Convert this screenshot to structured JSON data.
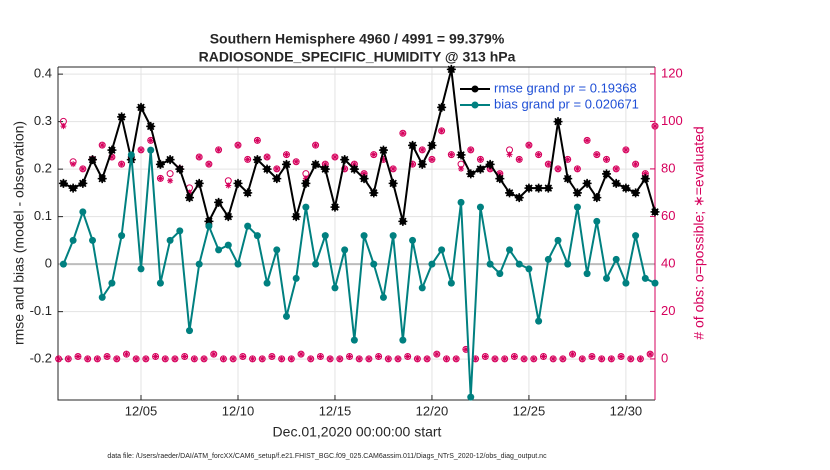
{
  "chart_data": {
    "type": "line",
    "title": "Southern Hemisphere 4960 / 4991 = 99.379%",
    "subtitle": "RADIOSONDE_SPECIFIC_HUMIDITY @ 313 hPa",
    "xlabel": "Dec.01,2020 00:00:00 start",
    "ylabel": "rmse and bias (model - observation)",
    "y2label": "# of obs: o=possible; ∗=evaluated",
    "footnote": "data file: /Users/raeder/DAI/ATM_forcXX/CAM6_setup/f.e21.FHIST_BGC.f09_025.CAM6assim.011/Diags_NTrS_2020-12/obs_diag_output.nc",
    "xlim": [
      0.72,
      31.5
    ],
    "xticks": [
      {
        "value": 5,
        "label": "12/05"
      },
      {
        "value": 10,
        "label": "12/10"
      },
      {
        "value": 15,
        "label": "12/15"
      },
      {
        "value": 20,
        "label": "12/20"
      },
      {
        "value": 25,
        "label": "12/25"
      },
      {
        "value": 30,
        "label": "12/30"
      }
    ],
    "ylim": [
      -0.286,
      0.415
    ],
    "yticks": [
      -0.2,
      -0.1,
      0,
      0.1,
      0.2,
      0.3,
      0.4
    ],
    "y2lim": [
      -17.3,
      122.9
    ],
    "y2ticks": [
      0,
      20,
      40,
      60,
      80,
      100,
      120
    ],
    "grid": true,
    "hline": 0,
    "legend": "northeast",
    "legend_text_color": "#1f4fd6",
    "x": [
      1,
      1.5,
      2,
      2.5,
      3,
      3.5,
      4,
      4.5,
      5,
      5.5,
      6,
      6.5,
      7,
      7.5,
      8,
      8.5,
      9,
      9.5,
      10,
      10.5,
      11,
      11.5,
      12,
      12.5,
      13,
      13.5,
      14,
      14.5,
      15,
      15.5,
      16,
      16.5,
      17,
      17.5,
      18,
      18.5,
      19,
      19.5,
      20,
      20.5,
      21,
      21.5,
      22,
      22.5,
      23,
      23.5,
      24,
      24.5,
      25,
      25.5,
      26,
      26.5,
      27,
      27.5,
      28,
      28.5,
      29,
      29.5,
      30,
      30.5,
      31,
      31.5
    ],
    "series": [
      {
        "name": "rmse grand pr = 0.19368",
        "color": "#000000",
        "values": [
          0.17,
          0.16,
          0.17,
          0.22,
          0.18,
          0.24,
          0.31,
          0.22,
          0.33,
          0.29,
          0.21,
          0.22,
          0.2,
          0.14,
          0.17,
          0.09,
          0.13,
          0.1,
          0.17,
          0.15,
          0.22,
          0.2,
          0.18,
          0.21,
          0.1,
          0.17,
          0.21,
          0.2,
          0.12,
          0.22,
          0.2,
          0.18,
          0.15,
          0.24,
          0.17,
          0.09,
          0.25,
          0.21,
          0.25,
          0.33,
          0.41,
          0.23,
          0.19,
          0.2,
          0.21,
          0.18,
          0.15,
          0.14,
          0.16,
          0.16,
          0.16,
          0.3,
          0.18,
          0.15,
          0.17,
          0.14,
          0.19,
          0.17,
          0.16,
          0.15,
          0.18,
          0.11
        ]
      },
      {
        "name": "bias grand pr = 0.020671",
        "color": "#008080",
        "values": [
          0,
          0.05,
          0.11,
          0.05,
          -0.07,
          -0.04,
          0.06,
          0.23,
          -0.01,
          0.24,
          -0.04,
          0.05,
          0.07,
          -0.14,
          0,
          0.08,
          0.03,
          0.04,
          0,
          0.08,
          0.06,
          -0.04,
          0.03,
          -0.11,
          -0.03,
          0.12,
          0,
          0.06,
          -0.05,
          0.03,
          -0.16,
          0.06,
          0,
          -0.07,
          0.06,
          -0.16,
          0.05,
          -0.05,
          0,
          0.03,
          -0.04,
          0.13,
          -0.28,
          0.12,
          0,
          -0.02,
          0.03,
          0,
          -0.01,
          -0.12,
          0.01,
          0.05,
          0,
          0.12,
          -0.02,
          0.09,
          -0.03,
          0.01,
          -0.04,
          0.06,
          -0.03,
          -0.04
        ]
      }
    ],
    "obs_color": "#d6005c",
    "obs_upper_possible": [
      100,
      83,
      80,
      84,
      90,
      85,
      82,
      85,
      88,
      92,
      76,
      78,
      80,
      72,
      85,
      82,
      88,
      75,
      90,
      84,
      92,
      85,
      80,
      86,
      83,
      78,
      90,
      82,
      85,
      80,
      82,
      78,
      86,
      84,
      80,
      95,
      82,
      88,
      84,
      96,
      86,
      82,
      88,
      84,
      80,
      78,
      88,
      84,
      90,
      86,
      82,
      80,
      84,
      80,
      92,
      86,
      84,
      80,
      88,
      82,
      78,
      98
    ],
    "obs_upper_evaluated": [
      98,
      82,
      80,
      84,
      90,
      85,
      82,
      85,
      88,
      92,
      76,
      75,
      80,
      70,
      85,
      82,
      88,
      73,
      90,
      84,
      92,
      85,
      80,
      86,
      83,
      76,
      90,
      82,
      85,
      80,
      82,
      78,
      86,
      84,
      80,
      95,
      82,
      88,
      84,
      96,
      86,
      80,
      88,
      84,
      80,
      78,
      86,
      84,
      90,
      86,
      82,
      80,
      84,
      80,
      92,
      86,
      84,
      80,
      88,
      82,
      78,
      98
    ],
    "obs_lower_x": [
      0.75,
      1.25,
      1.75,
      2.25,
      2.75,
      3.25,
      3.75,
      4.25,
      4.75,
      5.25,
      5.75,
      6.25,
      6.75,
      7.25,
      7.75,
      8.25,
      8.75,
      9.25,
      9.75,
      10.25,
      10.75,
      11.25,
      11.75,
      12.25,
      12.75,
      13.25,
      13.75,
      14.25,
      14.75,
      15.25,
      15.75,
      16.25,
      16.75,
      17.25,
      17.75,
      18.25,
      18.75,
      19.25,
      19.75,
      20.25,
      20.75,
      21.25,
      21.75,
      22.25,
      22.75,
      23.25,
      23.75,
      24.25,
      24.75,
      25.25,
      25.75,
      26.25,
      26.75,
      27.25,
      27.75,
      28.25,
      28.75,
      29.25,
      29.75,
      30.25,
      30.75,
      31.25
    ],
    "obs_lower_possible": [
      0,
      0,
      1,
      0,
      0,
      1,
      0,
      2,
      0,
      0,
      1,
      0,
      0,
      1,
      0,
      0,
      2,
      0,
      0,
      1,
      0,
      0,
      1,
      0,
      0,
      2,
      0,
      1,
      0,
      0,
      1,
      0,
      0,
      1,
      0,
      0,
      1,
      0,
      0,
      2,
      0,
      0,
      4,
      0,
      1,
      0,
      0,
      1,
      0,
      0,
      1,
      0,
      0,
      2,
      0,
      1,
      0,
      0,
      1,
      0,
      0,
      2
    ],
    "obs_lower_evaluated": [
      0,
      0,
      1,
      0,
      0,
      1,
      0,
      2,
      0,
      0,
      1,
      0,
      0,
      1,
      0,
      0,
      2,
      0,
      0,
      1,
      0,
      0,
      1,
      0,
      0,
      2,
      0,
      1,
      0,
      0,
      1,
      0,
      0,
      1,
      0,
      0,
      1,
      0,
      0,
      2,
      0,
      0,
      4,
      0,
      1,
      0,
      0,
      1,
      0,
      0,
      1,
      0,
      0,
      2,
      0,
      1,
      0,
      0,
      1,
      0,
      0,
      2
    ]
  }
}
